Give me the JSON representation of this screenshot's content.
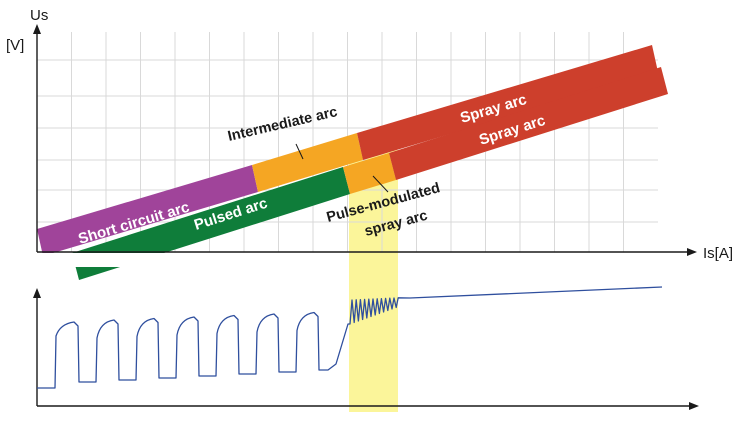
{
  "axes": {
    "y_label": "Us",
    "y_unit": "[V]",
    "x_label": "Is[A]"
  },
  "bands": {
    "upper": {
      "segments": [
        {
          "name": "Short circuit arc",
          "color": "#a0449a"
        },
        {
          "name": "Intermediate arc",
          "color": "#f5a623"
        },
        {
          "name": "Spray arc",
          "color": "#cd3f2c"
        }
      ]
    },
    "lower": {
      "segments": [
        {
          "name": "Pulsed arc",
          "color": "#0f7d3a"
        },
        {
          "name": "Pulse-modulated spray arc",
          "color": "#f5a623"
        },
        {
          "name": "Spray arc",
          "color": "#cd3f2c"
        }
      ]
    }
  },
  "labels": {
    "short_circuit_arc": "Short circuit arc",
    "intermediate_arc": "Intermediate arc",
    "spray_arc_upper": "Spray arc",
    "pulsed_arc": "Pulsed arc",
    "spray_arc_lower": "Spray arc",
    "pulse_modulated_line1": "Pulse-modulated",
    "pulse_modulated_line2": "spray arc"
  },
  "colors": {
    "grid": "#d9d9d9",
    "axis": "#1a1a1a",
    "highlight": "#fbf59a",
    "waveform": "#2f4f9e"
  }
}
